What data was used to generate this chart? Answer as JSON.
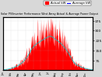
{
  "title": "Solar PV/Inverter Performance West Array Actual & Average Power Output",
  "title_fontsize": 4.5,
  "bg_color": "#d8d8d8",
  "plot_bg_color": "#ffffff",
  "grid_color": "#aaaaaa",
  "fill_color": "#ff0000",
  "line_color": "#00cccc",
  "legend_actual_color": "#ff0000",
  "legend_avg_color": "#0000ff",
  "legend_labels": [
    "Actual kW",
    "Average kW"
  ],
  "ylabel_right": [
    "75",
    "150",
    "225",
    "300",
    "375"
  ],
  "ylabel_right_vals": [
    75,
    150,
    225,
    300,
    375
  ],
  "ymax": 400,
  "n_points": 365
}
